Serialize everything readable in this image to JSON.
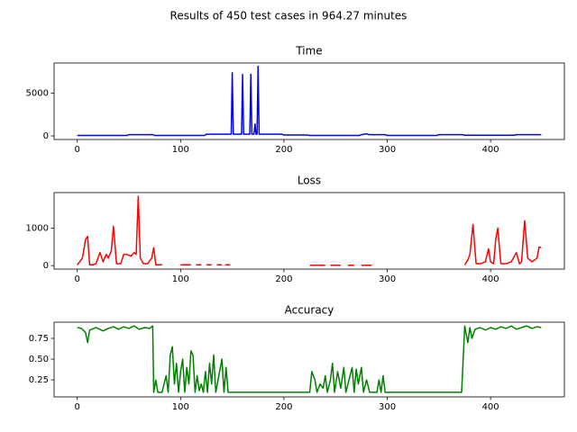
{
  "title": "Results of 450 test cases in 964.27 minutes",
  "chart_data": [
    {
      "type": "line",
      "title": "Time",
      "color": "#0000ff",
      "x": [
        0,
        48,
        50,
        73,
        75,
        123,
        125,
        147,
        149,
        150,
        151,
        153,
        157,
        159,
        160,
        161,
        163,
        166,
        167,
        168,
        169,
        170,
        171,
        172,
        173,
        174,
        175,
        176,
        178,
        198,
        200,
        223,
        225,
        273,
        275,
        280,
        282,
        298,
        300,
        348,
        350,
        373,
        375,
        423,
        425,
        449
      ],
      "values": [
        50,
        50,
        150,
        150,
        50,
        50,
        200,
        200,
        200,
        7400,
        200,
        200,
        200,
        200,
        7200,
        200,
        200,
        200,
        200,
        7200,
        200,
        200,
        200,
        1400,
        200,
        200,
        8150,
        200,
        200,
        200,
        100,
        100,
        50,
        50,
        150,
        250,
        150,
        150,
        50,
        50,
        150,
        150,
        80,
        80,
        150,
        150
      ],
      "xlim": [
        -22.45,
        471.45
      ],
      "xticks": [
        0,
        100,
        200,
        300,
        400
      ],
      "ylim": [
        -420,
        8530
      ],
      "yticks": [
        0,
        5000
      ]
    },
    {
      "type": "line",
      "title": "Loss",
      "color": "#ff0000",
      "x": [
        0,
        5,
        8,
        10,
        12,
        15,
        18,
        22,
        25,
        28,
        30,
        33,
        35,
        38,
        42,
        45,
        48,
        52,
        55,
        57,
        59,
        61,
        64,
        68,
        72,
        74,
        76,
        82,
        90,
        100,
        110,
        112,
        115,
        120,
        122,
        125,
        130,
        132,
        135,
        140,
        141,
        143,
        148,
        160,
        225,
        240,
        242,
        245,
        255,
        258,
        262,
        268,
        270,
        275,
        285,
        300,
        375,
        378,
        380,
        383,
        386,
        390,
        395,
        398,
        400,
        403,
        405,
        407,
        410,
        415,
        420,
        425,
        428,
        430,
        433,
        436,
        440,
        445,
        447,
        449
      ],
      "values": [
        20,
        200,
        700,
        780,
        20,
        20,
        50,
        350,
        100,
        300,
        200,
        400,
        1050,
        50,
        50,
        300,
        300,
        250,
        350,
        300,
        1850,
        200,
        50,
        50,
        200,
        480,
        20,
        20,
        null,
        20,
        20,
        null,
        20,
        20,
        null,
        20,
        20,
        null,
        20,
        20,
        null,
        20,
        20,
        null,
        10,
        10,
        null,
        10,
        10,
        null,
        10,
        10,
        null,
        10,
        10,
        null,
        20,
        150,
        300,
        1100,
        50,
        50,
        100,
        450,
        100,
        50,
        700,
        1000,
        50,
        50,
        100,
        350,
        50,
        100,
        1200,
        200,
        100,
        200,
        500,
        480
      ],
      "xlim": [
        -22.45,
        471.45
      ],
      "xticks": [
        0,
        100,
        200,
        300,
        400
      ],
      "ylim": [
        -93,
        1950
      ],
      "yticks": [
        0,
        1000
      ]
    },
    {
      "type": "line",
      "title": "Accuracy",
      "color": "#008000",
      "x": [
        0,
        4,
        8,
        10,
        12,
        18,
        25,
        30,
        35,
        40,
        45,
        50,
        55,
        60,
        65,
        70,
        73,
        74,
        76,
        78,
        82,
        86,
        88,
        90,
        92,
        94,
        96,
        98,
        100,
        102,
        104,
        106,
        108,
        110,
        112,
        114,
        116,
        118,
        120,
        122,
        124,
        126,
        128,
        130,
        132,
        134,
        137,
        140,
        142,
        144,
        146,
        225,
        227,
        230,
        232,
        235,
        238,
        240,
        242,
        245,
        247,
        249,
        252,
        255,
        258,
        260,
        263,
        266,
        268,
        270,
        272,
        275,
        277,
        280,
        283,
        290,
        292,
        294,
        296,
        298,
        372,
        375,
        378,
        380,
        382,
        385,
        390,
        395,
        400,
        405,
        410,
        415,
        420,
        425,
        430,
        435,
        440,
        445,
        449
      ],
      "values": [
        0.88,
        0.87,
        0.82,
        0.7,
        0.85,
        0.88,
        0.84,
        0.87,
        0.89,
        0.86,
        0.89,
        0.87,
        0.9,
        0.86,
        0.88,
        0.87,
        0.9,
        0.1,
        0.25,
        0.1,
        0.1,
        0.3,
        0.1,
        0.55,
        0.65,
        0.2,
        0.45,
        0.1,
        0.35,
        0.5,
        0.1,
        0.4,
        0.2,
        0.6,
        0.55,
        0.1,
        0.3,
        0.12,
        0.2,
        0.1,
        0.35,
        0.1,
        0.45,
        0.2,
        0.55,
        0.1,
        0.3,
        0.5,
        0.1,
        0.4,
        0.1,
        0.1,
        0.35,
        0.25,
        0.1,
        0.2,
        0.15,
        0.3,
        0.1,
        0.25,
        0.45,
        0.1,
        0.35,
        0.15,
        0.4,
        0.1,
        0.25,
        0.4,
        0.1,
        0.38,
        0.2,
        0.4,
        0.1,
        0.25,
        0.1,
        0.1,
        0.25,
        0.1,
        0.3,
        0.1,
        0.1,
        0.9,
        0.7,
        0.88,
        0.75,
        0.86,
        0.88,
        0.85,
        0.88,
        0.86,
        0.89,
        0.87,
        0.9,
        0.86,
        0.88,
        0.9,
        0.87,
        0.89,
        0.88
      ],
      "xlim": [
        -22.45,
        471.45
      ],
      "xticks": [
        0,
        100,
        200,
        300,
        400
      ],
      "ylim": [
        0.045,
        0.945
      ],
      "yticks": [
        0.25,
        {
          "value": 0.5,
          "label": "0.50"
        },
        0.75
      ]
    }
  ]
}
